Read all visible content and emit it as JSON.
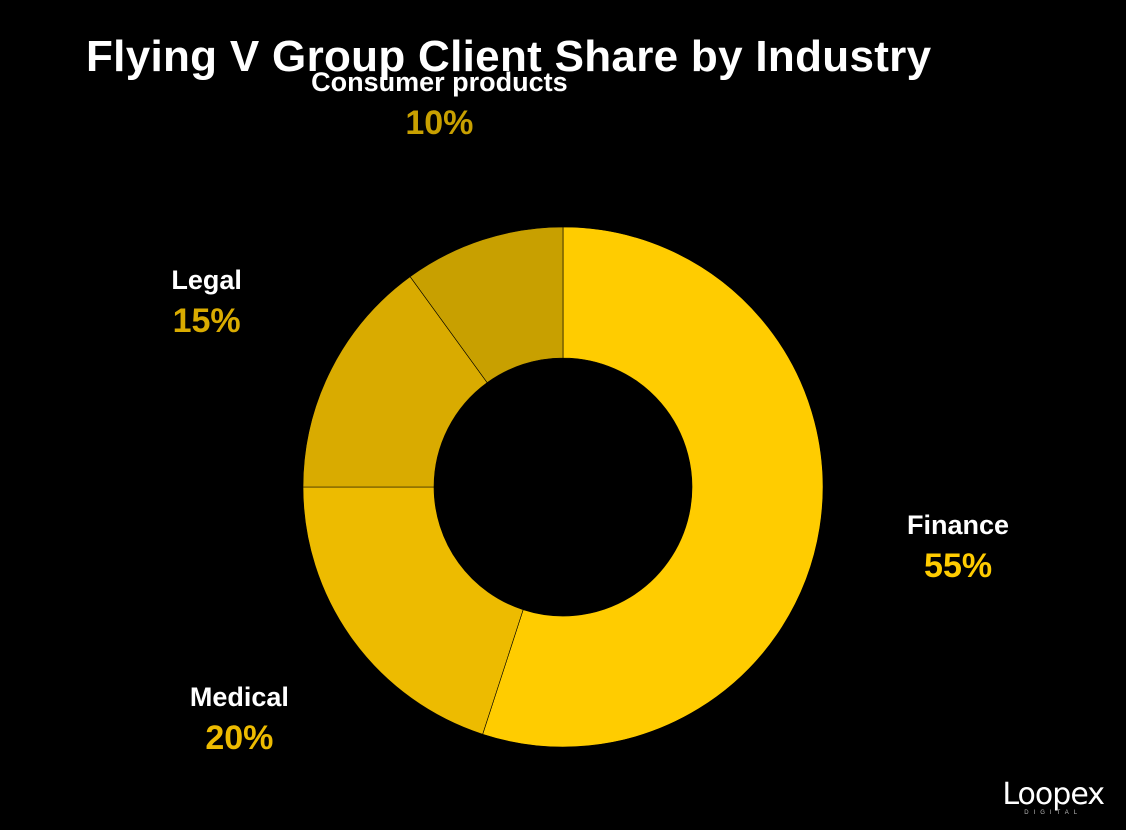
{
  "chart_data": {
    "type": "pie",
    "title": "Flying V Group Client Share by Industry",
    "donut": true,
    "categories": [
      "Finance",
      "Medical",
      "Legal",
      "Consumer products"
    ],
    "values": [
      55,
      20,
      15,
      10
    ],
    "value_labels": [
      "55%",
      "20%",
      "15%",
      "10%"
    ],
    "colors": [
      "#ffcc00",
      "#edbb00",
      "#d9ab00",
      "#c8a000"
    ],
    "label_colors": [
      "#ffcc00",
      "#edbb00",
      "#d9ab00",
      "#c8a000"
    ],
    "start": "12 o'clock",
    "direction": "clockwise"
  },
  "logo": {
    "word": "Loopex",
    "sub": "DIGITAL"
  }
}
